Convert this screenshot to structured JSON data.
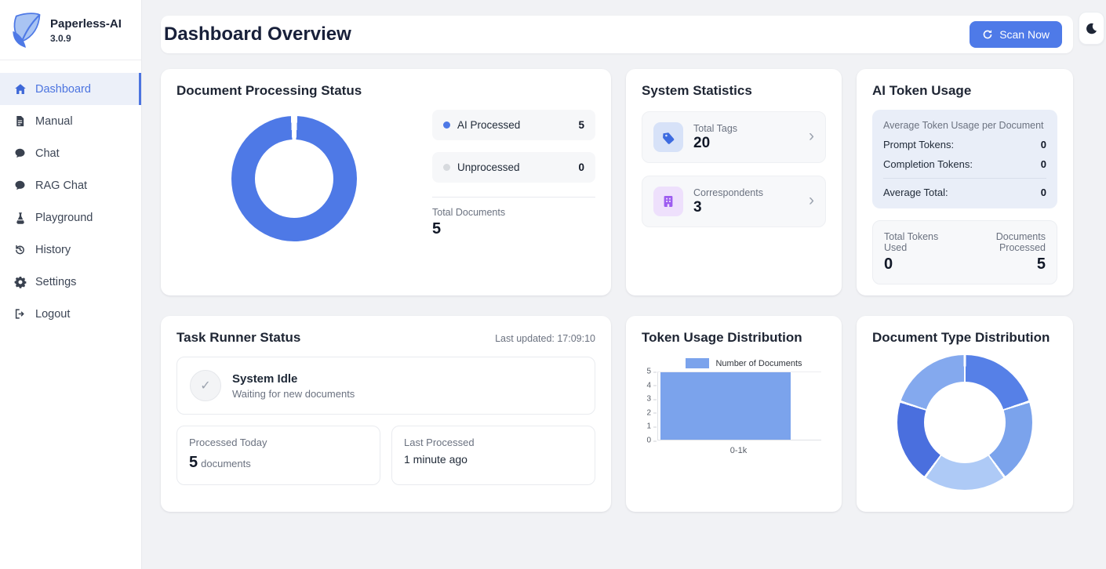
{
  "app": {
    "name": "Paperless-AI",
    "version": "3.0.9"
  },
  "icons": {
    "chevron_right": "›",
    "check": "✓"
  },
  "sidebar": {
    "items": [
      {
        "label": "Dashboard",
        "icon": "home-icon",
        "active": true
      },
      {
        "label": "Manual",
        "icon": "document-icon",
        "active": false
      },
      {
        "label": "Chat",
        "icon": "chat-icon",
        "active": false
      },
      {
        "label": "RAG Chat",
        "icon": "chat-icon",
        "active": false
      },
      {
        "label": "Playground",
        "icon": "flask-icon",
        "active": false
      },
      {
        "label": "History",
        "icon": "history-icon",
        "active": false
      },
      {
        "label": "Settings",
        "icon": "gear-icon",
        "active": false
      },
      {
        "label": "Logout",
        "icon": "logout-icon",
        "active": false
      }
    ]
  },
  "header": {
    "title": "Dashboard Overview",
    "scan_button_label": "Scan Now"
  },
  "colors": {
    "primary_blue": "#4e7ae8",
    "active_nav_blue": "#4c74e0",
    "bar_blue": "#7ba3ec",
    "unprocessed_gray": "#d7dade"
  },
  "cards": {
    "processing": {
      "title": "Document Processing Status",
      "total_label": "Total Documents",
      "total_value": "5"
    },
    "stats": {
      "title": "System Statistics",
      "items": [
        {
          "label": "Total Tags",
          "value": "20",
          "icon": "tag-icon"
        },
        {
          "label": "Correspondents",
          "value": "3",
          "icon": "building-icon"
        }
      ]
    },
    "tokens": {
      "title": "AI Token Usage",
      "avg_heading": "Average Token Usage per Document",
      "prompt_label": "Prompt Tokens:",
      "prompt_value": "0",
      "completion_label": "Completion Tokens:",
      "completion_value": "0",
      "avg_total_label": "Average Total:",
      "avg_total_value": "0",
      "total_used_label": "Total Tokens Used",
      "total_used_value": "0",
      "docs_processed_label": "Documents Processed",
      "docs_processed_value": "5"
    },
    "task": {
      "title": "Task Runner Status",
      "last_updated": "Last updated: 17:09:10",
      "status_title": "System Idle",
      "status_subtitle": "Waiting for new documents",
      "processed_label": "Processed Today",
      "processed_value": "5",
      "processed_unit": "documents",
      "last_label": "Last Processed",
      "last_value": "1 minute ago"
    },
    "token_dist": {
      "title": "Token Usage Distribution"
    },
    "doc_type": {
      "title": "Document Type Distribution"
    }
  },
  "chart_data": [
    {
      "type": "doughnut",
      "title": "Document Processing Status",
      "labels": [
        "AI Processed",
        "Unprocessed"
      ],
      "values": [
        5,
        0
      ],
      "colors": [
        "#4e79e6",
        "#d7dade"
      ],
      "total_label": "Total Documents",
      "total": 5,
      "legend_position": "right"
    },
    {
      "type": "bar",
      "title": "Token Usage Distribution",
      "categories": [
        "0-1k"
      ],
      "values": [
        5
      ],
      "series_name": "Number of Documents",
      "bar_color": "#7ba3ec",
      "ylim": [
        0,
        5
      ],
      "yticks": [
        "5",
        "4",
        "3",
        "2",
        "1",
        "0"
      ],
      "xlabel": "",
      "ylabel": "",
      "grid": false,
      "legend_position": "top"
    },
    {
      "type": "doughnut",
      "title": "Document Type Distribution",
      "labels": [
        "",
        "",
        "",
        "",
        ""
      ],
      "values": [
        1,
        1,
        1,
        1,
        1
      ],
      "colors": [
        "#5680e7",
        "#7ba3ec",
        "#aecaf6",
        "#4a6fde",
        "#84a9ee"
      ],
      "legend_position": "none",
      "note": "five equal unlabeled segments"
    }
  ]
}
